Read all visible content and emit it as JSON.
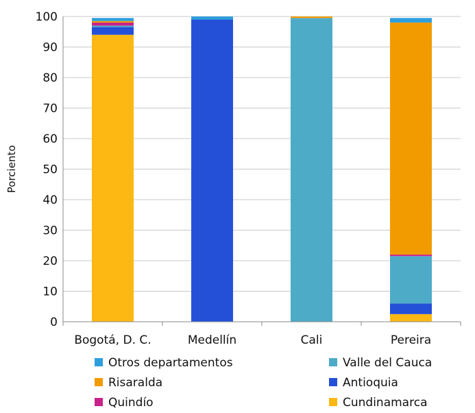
{
  "chart_data": {
    "type": "bar",
    "stacked": true,
    "ylabel": "Porciento",
    "xlabel": "",
    "ylim": [
      0,
      100
    ],
    "yticks": [
      0,
      10,
      20,
      30,
      40,
      50,
      60,
      70,
      80,
      90,
      100
    ],
    "grid": true,
    "legend_placement": "bottom",
    "categories": [
      "Bogotá, D. C.",
      "Medellín",
      "Cali",
      "Pereira"
    ],
    "series": [
      {
        "name": "Cundinamarca",
        "color": "#FDB813",
        "values": [
          94.0,
          0.0,
          0.0,
          2.5
        ]
      },
      {
        "name": "Antioquia",
        "color": "#2450D8",
        "values": [
          2.5,
          99.0,
          0.0,
          3.5
        ]
      },
      {
        "name": "Valle del Cauca",
        "color": "#4EABC8",
        "values": [
          0.5,
          0.0,
          99.5,
          15.5
        ]
      },
      {
        "name": "Quindío",
        "color": "#C8238A",
        "values": [
          1.0,
          0.0,
          0.0,
          0.5
        ]
      },
      {
        "name": "Risaralda",
        "color": "#F29B00",
        "values": [
          0.5,
          0.0,
          0.5,
          76.0
        ]
      },
      {
        "name": "Otros departamentos",
        "color": "#2E9FDD",
        "values": [
          1.0,
          1.0,
          0.0,
          1.5
        ]
      }
    ],
    "legend_order": [
      "Otros departamentos",
      "Valle del Cauca",
      "Risaralda",
      "Antioquia",
      "Quindío",
      "Cundinamarca"
    ]
  }
}
